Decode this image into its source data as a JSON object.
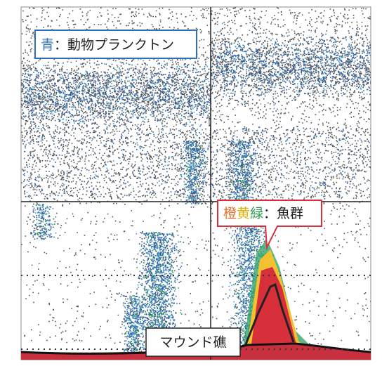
{
  "labels": {
    "plankton": {
      "color_word": "青",
      "text": "：動物プランクトン"
    },
    "fish": {
      "words": [
        "橙",
        "黄",
        "緑"
      ],
      "text": "：魚群"
    },
    "mound": "マウンド礁"
  }
}
